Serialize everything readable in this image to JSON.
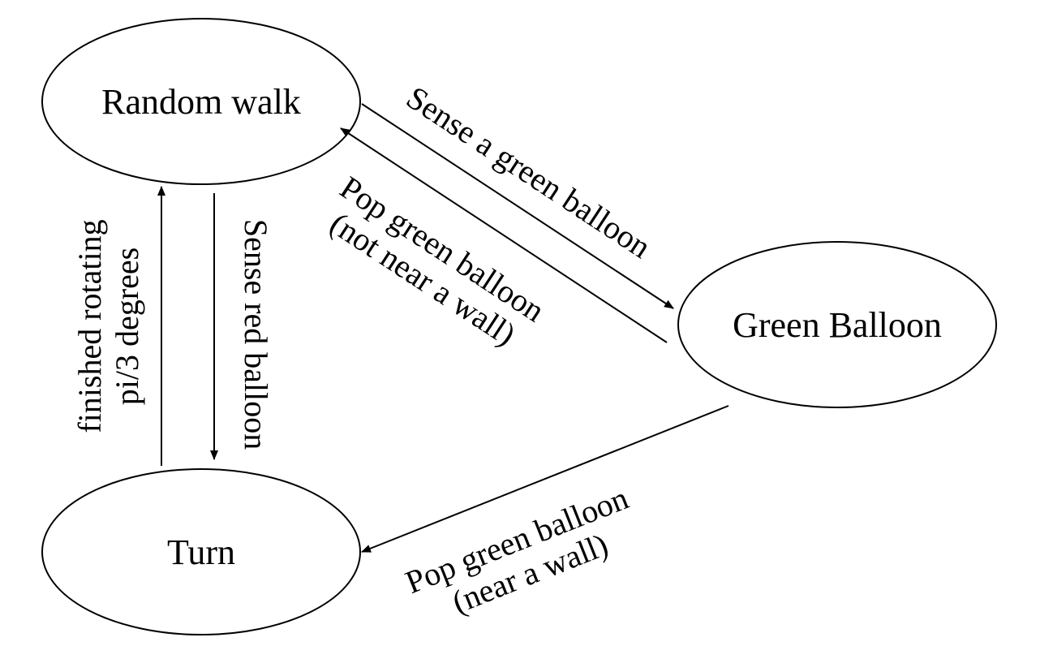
{
  "nodes": {
    "random_walk": {
      "label": "Random walk"
    },
    "green_balloon": {
      "label": "Green Balloon"
    },
    "turn": {
      "label": "Turn"
    }
  },
  "edges": {
    "sense_green": {
      "from": "Random walk",
      "to": "Green Balloon",
      "lines": [
        "Sense a green balloon"
      ]
    },
    "pop_not_near_wall": {
      "from": "Green Balloon",
      "to": "Random walk",
      "lines": [
        "Pop green balloon",
        "(not near a wall)"
      ]
    },
    "pop_near_wall": {
      "from": "Green Balloon",
      "to": "Turn",
      "lines": [
        "Pop green balloon",
        "(near a wall)"
      ]
    },
    "sense_red": {
      "from": "Random walk",
      "to": "Turn",
      "lines": [
        "Sense red balloon"
      ]
    },
    "finished_rotating": {
      "from": "Turn",
      "to": "Random walk",
      "lines": [
        "finished rotating",
        "pi/3 degrees"
      ]
    }
  },
  "colors": {
    "stroke": "#000000",
    "background": "#ffffff"
  }
}
